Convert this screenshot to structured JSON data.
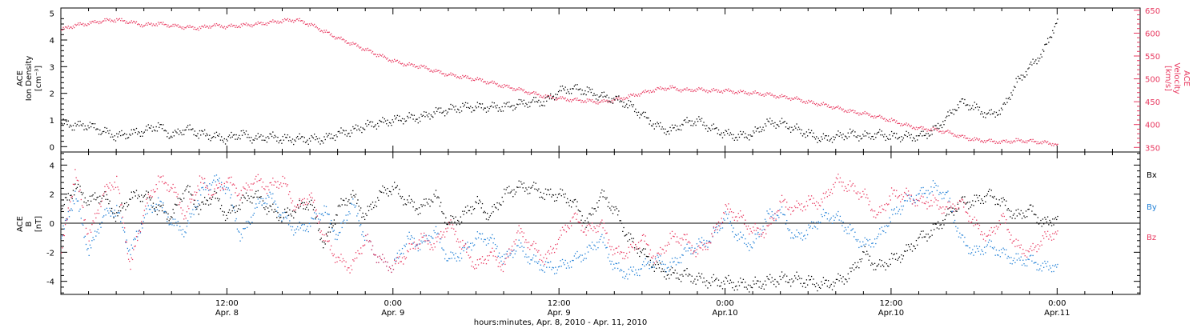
{
  "colors": {
    "black": "#000000",
    "pink": "#e8385f",
    "blue": "#1f7fd6"
  },
  "top_panel": {
    "left_label_lines": [
      "ACE",
      "Ion Density",
      "[cm⁻³]"
    ],
    "right_label_lines": [
      "ACE",
      "Velocity",
      "[km/s]"
    ]
  },
  "bottom_panel": {
    "left_label_lines": [
      "ACE",
      "B",
      "[nT]"
    ],
    "legend": [
      "Bx",
      "By",
      "Bz"
    ]
  },
  "x_axis": {
    "title": "hours:minutes, Apr.  8, 2010 - Apr. 11, 2010",
    "tick_labels": [
      {
        "t": 12,
        "time": "12:00",
        "date": "Apr. 8"
      },
      {
        "t": 24,
        "time": "0:00",
        "date": "Apr. 9"
      },
      {
        "t": 36,
        "time": "12:00",
        "date": "Apr. 9"
      },
      {
        "t": 48,
        "time": "0:00",
        "date": "Apr.10"
      },
      {
        "t": 60,
        "time": "12:00",
        "date": "Apr.10"
      },
      {
        "t": 72,
        "time": "0:00",
        "date": "Apr.11"
      }
    ],
    "range_hours": [
      0,
      78
    ],
    "minor_step_hours": 2
  },
  "chart_data": [
    {
      "type": "scatter",
      "ylabel": "ACE Ion Density [cm⁻³]",
      "ylim": [
        -0.2,
        5.2
      ],
      "yticks": [
        0,
        1,
        2,
        3,
        4,
        5
      ],
      "y2label": "ACE Velocity [km/s]",
      "y2lim": [
        340,
        655
      ],
      "y2ticks": [
        350,
        400,
        450,
        500,
        550,
        600,
        650
      ],
      "series": [
        {
          "name": "Ion Density",
          "axis": "left",
          "x_hours": [
            0,
            1,
            2,
            3,
            4,
            5,
            6,
            7,
            8,
            9,
            10,
            11,
            12,
            13,
            14,
            15,
            16,
            17,
            18,
            19,
            20,
            21,
            22,
            23,
            24,
            25,
            26,
            27,
            28,
            29,
            30,
            31,
            32,
            33,
            34,
            35,
            36,
            37,
            38,
            39,
            40,
            41,
            42,
            43,
            44,
            45,
            46,
            47,
            48,
            49,
            50,
            51,
            52,
            53,
            54,
            55,
            56,
            57,
            58,
            59,
            60,
            61,
            62,
            63,
            64,
            65,
            66,
            67,
            68,
            69,
            70,
            71,
            72
          ],
          "values": [
            0.9,
            0.8,
            0.8,
            0.6,
            0.4,
            0.5,
            0.6,
            0.8,
            0.4,
            0.7,
            0.5,
            0.4,
            0.3,
            0.5,
            0.3,
            0.4,
            0.3,
            0.3,
            0.3,
            0.3,
            0.5,
            0.6,
            0.8,
            0.9,
            1.0,
            1.1,
            1.1,
            1.3,
            1.4,
            1.5,
            1.5,
            1.5,
            1.5,
            1.6,
            1.7,
            1.7,
            2.1,
            2.2,
            2.1,
            1.9,
            1.8,
            1.6,
            1.2,
            0.8,
            0.6,
            0.9,
            1.0,
            0.7,
            0.5,
            0.4,
            0.5,
            0.9,
            0.9,
            0.7,
            0.5,
            0.3,
            0.4,
            0.5,
            0.4,
            0.5,
            0.4,
            0.4,
            0.4,
            0.6,
            1.1,
            1.7,
            1.5,
            1.2,
            1.4,
            2.4,
            3.0,
            3.6,
            4.8
          ]
        },
        {
          "name": "Velocity",
          "axis": "right",
          "x_hours": [
            0,
            1,
            2,
            3,
            4,
            5,
            6,
            7,
            8,
            9,
            10,
            11,
            12,
            13,
            14,
            15,
            16,
            17,
            18,
            19,
            20,
            21,
            22,
            23,
            24,
            25,
            26,
            27,
            28,
            29,
            30,
            31,
            32,
            33,
            34,
            35,
            36,
            37,
            38,
            39,
            40,
            41,
            42,
            43,
            44,
            45,
            46,
            47,
            48,
            49,
            50,
            51,
            52,
            53,
            54,
            55,
            56,
            57,
            58,
            59,
            60,
            61,
            62,
            63,
            64,
            65,
            66,
            67,
            68,
            69,
            70,
            71,
            72
          ],
          "values": [
            608,
            618,
            622,
            628,
            630,
            625,
            618,
            622,
            617,
            614,
            612,
            618,
            615,
            618,
            620,
            624,
            628,
            630,
            620,
            605,
            590,
            578,
            565,
            552,
            540,
            532,
            528,
            518,
            510,
            505,
            500,
            493,
            485,
            478,
            470,
            462,
            458,
            455,
            453,
            450,
            455,
            462,
            470,
            478,
            482,
            476,
            478,
            475,
            475,
            472,
            470,
            467,
            462,
            458,
            450,
            445,
            438,
            430,
            425,
            418,
            410,
            400,
            393,
            390,
            385,
            375,
            368,
            365,
            363,
            366,
            365,
            362,
            358
          ]
        }
      ]
    },
    {
      "type": "scatter",
      "ylabel": "ACE B [nT]",
      "ylim": [
        -4.9,
        4.9
      ],
      "yticks": [
        -4,
        -2,
        0,
        2,
        4
      ],
      "zero_line": true,
      "series": [
        {
          "name": "Bx",
          "x_hours": [
            0,
            1,
            2,
            3,
            4,
            5,
            6,
            7,
            8,
            9,
            10,
            11,
            12,
            13,
            14,
            15,
            16,
            17,
            18,
            19,
            20,
            21,
            22,
            23,
            24,
            25,
            26,
            27,
            28,
            29,
            30,
            31,
            32,
            33,
            34,
            35,
            36,
            37,
            38,
            39,
            40,
            41,
            42,
            43,
            44,
            45,
            46,
            47,
            48,
            49,
            50,
            51,
            52,
            53,
            54,
            55,
            56,
            57,
            58,
            59,
            60,
            61,
            62,
            63,
            64,
            65,
            66,
            67,
            68,
            69,
            70,
            71,
            72
          ],
          "values": [
            1.0,
            2.5,
            1.5,
            2.0,
            0.5,
            1.8,
            2.0,
            1.0,
            0.5,
            2.5,
            1.0,
            2.0,
            0.5,
            1.5,
            2.0,
            1.0,
            0.5,
            1.0,
            1.5,
            -1.5,
            1.0,
            2.0,
            0.5,
            2.0,
            2.5,
            1.5,
            1.0,
            2.0,
            0.0,
            0.5,
            1.5,
            0.5,
            2.0,
            2.5,
            2.5,
            2.0,
            2.0,
            1.5,
            0.0,
            2.0,
            1.0,
            -1.0,
            -2.0,
            -3.0,
            -3.5,
            -3.5,
            -3.8,
            -4.0,
            -4.0,
            -4.2,
            -4.2,
            -4.0,
            -3.8,
            -3.8,
            -4.0,
            -4.2,
            -4.0,
            -3.5,
            -2.0,
            -3.0,
            -2.5,
            -2.0,
            -1.0,
            -0.5,
            0.5,
            1.5,
            1.5,
            2.0,
            1.5,
            0.5,
            1.0,
            0.0,
            0.5
          ]
        },
        {
          "name": "By",
          "x_hours": [
            0,
            1,
            2,
            3,
            4,
            5,
            6,
            7,
            8,
            9,
            10,
            11,
            12,
            13,
            14,
            15,
            16,
            17,
            18,
            19,
            20,
            21,
            22,
            23,
            24,
            25,
            26,
            27,
            28,
            29,
            30,
            31,
            32,
            33,
            34,
            35,
            36,
            37,
            38,
            39,
            40,
            41,
            42,
            43,
            44,
            45,
            46,
            47,
            48,
            49,
            50,
            51,
            52,
            53,
            54,
            55,
            56,
            57,
            58,
            59,
            60,
            61,
            62,
            63,
            64,
            65,
            66,
            67,
            68,
            69,
            70,
            71,
            72
          ],
          "values": [
            -1.0,
            2.0,
            -2.0,
            0.5,
            1.0,
            -2.0,
            0.5,
            1.5,
            0.0,
            -0.5,
            2.0,
            3.0,
            2.5,
            -1.0,
            1.0,
            2.0,
            0.5,
            -0.5,
            0.0,
            1.0,
            -1.0,
            1.5,
            -1.0,
            -2.5,
            -3.0,
            -1.0,
            -1.5,
            -0.5,
            -2.5,
            -2.0,
            -1.0,
            -1.0,
            -2.5,
            -1.5,
            -2.5,
            -3.0,
            -3.0,
            -2.5,
            -2.0,
            -1.0,
            -3.0,
            -3.5,
            -3.0,
            -2.5,
            -3.0,
            -2.0,
            -1.5,
            -1.0,
            0.5,
            -1.0,
            -1.5,
            0.5,
            0.8,
            -1.0,
            -0.5,
            0.5,
            0.5,
            -0.5,
            -1.5,
            -1.0,
            0.5,
            1.5,
            2.0,
            2.5,
            2.0,
            -1.0,
            -2.0,
            -1.5,
            -2.0,
            -2.5,
            -2.5,
            -3.0,
            -2.8
          ]
        },
        {
          "name": "Bz",
          "x_hours": [
            0,
            1,
            2,
            3,
            4,
            5,
            6,
            7,
            8,
            9,
            10,
            11,
            12,
            13,
            14,
            15,
            16,
            17,
            18,
            19,
            20,
            21,
            22,
            23,
            24,
            25,
            26,
            27,
            28,
            29,
            30,
            31,
            32,
            33,
            34,
            35,
            36,
            37,
            38,
            39,
            40,
            41,
            42,
            43,
            44,
            45,
            46,
            47,
            48,
            49,
            50,
            51,
            52,
            53,
            54,
            55,
            56,
            57,
            58,
            59,
            60,
            61,
            62,
            63,
            64,
            65,
            66,
            67,
            68,
            69,
            70,
            71,
            72
          ],
          "values": [
            -2.0,
            3.5,
            -1.0,
            2.0,
            3.0,
            -3.0,
            1.0,
            3.0,
            2.5,
            0.5,
            3.0,
            2.0,
            3.0,
            2.0,
            3.0,
            2.5,
            3.0,
            1.0,
            2.0,
            -1.0,
            -2.5,
            -3.0,
            -1.0,
            -2.5,
            -3.0,
            -2.0,
            -1.0,
            -1.5,
            0.0,
            -1.5,
            -3.0,
            -2.0,
            -3.0,
            -0.5,
            -1.5,
            -2.5,
            -1.0,
            0.5,
            -0.5,
            0.0,
            -2.0,
            -2.0,
            -1.0,
            -2.5,
            -1.0,
            -1.0,
            -2.0,
            -1.0,
            1.0,
            0.5,
            -0.5,
            -0.5,
            1.5,
            1.0,
            1.5,
            1.5,
            3.0,
            2.5,
            2.0,
            0.5,
            2.0,
            2.0,
            1.5,
            1.5,
            1.0,
            1.5,
            0.0,
            -1.0,
            0.5,
            -1.5,
            -2.0,
            -1.0,
            -0.5
          ]
        }
      ]
    }
  ]
}
